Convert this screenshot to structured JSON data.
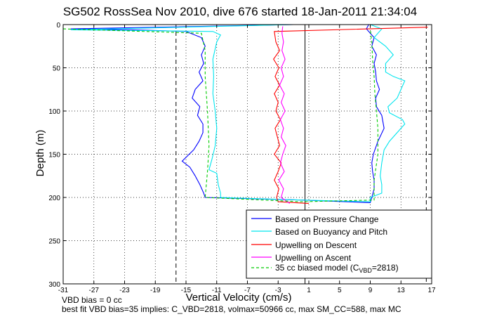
{
  "chart_data": {
    "type": "line",
    "title": "SG502 RossSea Nov 2010, dive 676 started 18-Jan-2011 21:34:04",
    "xlabel": "Vertical Velocity (cm/s)",
    "ylabel": "Depth (m)",
    "xlim": [
      -31,
      17
    ],
    "ylim": [
      0,
      300
    ],
    "y_reversed": true,
    "grid": true,
    "x_ticks": [
      -31,
      -27,
      -23,
      -19,
      -15,
      -11,
      -7,
      -3,
      1,
      5,
      9,
      13,
      17
    ],
    "y_ticks": [
      0,
      50,
      100,
      150,
      200,
      250,
      300
    ],
    "reference_lines": {
      "vertical_solid": [
        0.5
      ],
      "vertical_dashed": [
        -16.3,
        16.3
      ]
    },
    "legend_position": "bottom-right",
    "series": [
      {
        "name": "Based on Pressure Change",
        "color": "#0000ff",
        "style": "solid",
        "points": [
          [
            -1,
            0
          ],
          [
            -30,
            5
          ],
          [
            -22,
            6
          ],
          [
            -15,
            8
          ],
          [
            -13,
            15
          ],
          [
            -12.5,
            25
          ],
          [
            -13,
            35
          ],
          [
            -12.7,
            45
          ],
          [
            -13.3,
            55
          ],
          [
            -12.8,
            65
          ],
          [
            -13.8,
            75
          ],
          [
            -14.2,
            85
          ],
          [
            -13.2,
            95
          ],
          [
            -13.5,
            105
          ],
          [
            -12.8,
            115
          ],
          [
            -12.8,
            125
          ],
          [
            -13.3,
            135
          ],
          [
            -14,
            145
          ],
          [
            -15.5,
            158
          ],
          [
            -14.5,
            165
          ],
          [
            -13.8,
            175
          ],
          [
            -13.2,
            185
          ],
          [
            -12.7,
            195
          ],
          [
            -12.5,
            200
          ],
          [
            0,
            203
          ],
          [
            9,
            206
          ],
          [
            9.2,
            200
          ],
          [
            9.5,
            190
          ],
          [
            9.5,
            180
          ],
          [
            9.3,
            170
          ],
          [
            9.2,
            160
          ],
          [
            9.4,
            150
          ],
          [
            10,
            135
          ],
          [
            10.8,
            120
          ],
          [
            10.5,
            105
          ],
          [
            9.8,
            95
          ],
          [
            9.7,
            85
          ],
          [
            10.2,
            75
          ],
          [
            9.8,
            65
          ],
          [
            9.7,
            55
          ],
          [
            9.5,
            45
          ],
          [
            9.8,
            35
          ],
          [
            9.2,
            25
          ],
          [
            9.5,
            15
          ],
          [
            8.5,
            5
          ],
          [
            8.8,
            0
          ]
        ]
      },
      {
        "name": "Based on Buoyancy and Pitch",
        "color": "#00e5ee",
        "style": "solid",
        "points": [
          [
            -1,
            0
          ],
          [
            -30,
            6
          ],
          [
            -20,
            7
          ],
          [
            -11.5,
            8
          ],
          [
            -10.5,
            12
          ],
          [
            -11,
            20
          ],
          [
            -11.5,
            40
          ],
          [
            -11.4,
            60
          ],
          [
            -11.5,
            80
          ],
          [
            -11.2,
            100
          ],
          [
            -11,
            120
          ],
          [
            -11.2,
            140
          ],
          [
            -11.6,
            155
          ],
          [
            -12,
            168
          ],
          [
            -11,
            172
          ],
          [
            -10.8,
            185
          ],
          [
            -10.5,
            195
          ],
          [
            -10.5,
            200
          ],
          [
            0,
            203
          ],
          [
            9,
            205
          ],
          [
            9,
            200
          ],
          [
            10.5,
            195
          ],
          [
            10.5,
            185
          ],
          [
            10.3,
            175
          ],
          [
            10.5,
            160
          ],
          [
            10.8,
            145
          ],
          [
            11.5,
            135
          ],
          [
            13.5,
            115
          ],
          [
            13.2,
            110
          ],
          [
            11.5,
            102
          ],
          [
            11.3,
            95
          ],
          [
            12.5,
            85
          ],
          [
            13.5,
            65
          ],
          [
            12,
            60
          ],
          [
            11,
            55
          ],
          [
            11,
            45
          ],
          [
            12,
            35
          ],
          [
            11,
            25
          ],
          [
            9.5,
            15
          ],
          [
            10.5,
            5
          ],
          [
            9,
            0
          ]
        ]
      },
      {
        "name": "Upwelling on Descent",
        "color": "#ff0000",
        "style": "solid",
        "points": [
          [
            16.5,
            3
          ],
          [
            -3.5,
            8
          ],
          [
            -3.3,
            20
          ],
          [
            -2.8,
            30
          ],
          [
            -3.6,
            40
          ],
          [
            -2.9,
            50
          ],
          [
            -3.4,
            60
          ],
          [
            -2.8,
            70
          ],
          [
            -3.5,
            80
          ],
          [
            -3.0,
            90
          ],
          [
            -3.3,
            100
          ],
          [
            -2.7,
            110
          ],
          [
            -3.4,
            120
          ],
          [
            -3.1,
            130
          ],
          [
            -2.8,
            140
          ],
          [
            -3.5,
            150
          ],
          [
            -2.6,
            160
          ],
          [
            -3.0,
            170
          ],
          [
            -3.5,
            180
          ],
          [
            -2.9,
            190
          ],
          [
            -3.2,
            200
          ],
          [
            -3.0,
            205
          ],
          [
            1,
            207
          ]
        ]
      },
      {
        "name": "Upwelling on Ascent",
        "color": "#ff00ff",
        "style": "solid",
        "points": [
          [
            -1.5,
            207
          ],
          [
            -2.6,
            200
          ],
          [
            -2.3,
            190
          ],
          [
            -2.9,
            180
          ],
          [
            -2.2,
            170
          ],
          [
            -2.7,
            160
          ],
          [
            -2.4,
            150
          ],
          [
            -2.0,
            140
          ],
          [
            -2.6,
            130
          ],
          [
            -2.3,
            120
          ],
          [
            -2.7,
            110
          ],
          [
            -2.1,
            100
          ],
          [
            -2.6,
            90
          ],
          [
            -2.2,
            80
          ],
          [
            -2.8,
            70
          ],
          [
            -2.3,
            60
          ],
          [
            -2.6,
            50
          ],
          [
            -2.1,
            40
          ],
          [
            -2.5,
            30
          ],
          [
            -2.3,
            20
          ],
          [
            -2.5,
            10
          ],
          [
            -2.4,
            2
          ]
        ]
      },
      {
        "name": "35 cc biased model (C_VBD=2818)",
        "color": "#00cc00",
        "style": "dashed",
        "points": [
          [
            -31,
            5
          ],
          [
            -13,
            10
          ],
          [
            -12.5,
            30
          ],
          [
            -12.5,
            60
          ],
          [
            -12.2,
            100
          ],
          [
            -12,
            140
          ],
          [
            -12.2,
            170
          ],
          [
            -12.5,
            200
          ],
          [
            0,
            205
          ],
          [
            9.5,
            203
          ],
          [
            9.5,
            180
          ],
          [
            10,
            150
          ],
          [
            10,
            120
          ],
          [
            9.8,
            100
          ],
          [
            9.6,
            80
          ],
          [
            9.5,
            60
          ],
          [
            9.3,
            40
          ],
          [
            9.2,
            20
          ],
          [
            9.0,
            5
          ]
        ]
      }
    ]
  },
  "legend": {
    "entries": [
      "Based on Pressure Change",
      "Based on Buoyancy and Pitch",
      "Upwelling on Descent",
      "Upwelling on Ascent"
    ],
    "model_prefix": "35 cc biased model (C",
    "model_sub": "VBD",
    "model_suffix": "=2818)"
  },
  "footer": {
    "line1": "VBD bias = 0 cc",
    "line2": "best fit VBD bias=35 implies: C_VBD=2818, volmax=50966 cc, max SM_CC=588, max MC"
  }
}
